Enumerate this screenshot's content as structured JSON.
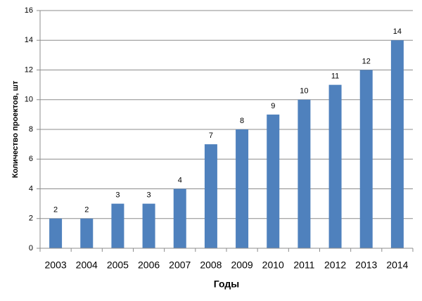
{
  "chart_data": {
    "type": "bar",
    "x_label": "Годы",
    "y_label": "Количество проектов, шт",
    "categories": [
      "2003",
      "2004",
      "2005",
      "2006",
      "2007",
      "2008",
      "2009",
      "2010",
      "2011",
      "2012",
      "2013",
      "2014"
    ],
    "values": [
      2,
      2,
      3,
      3,
      4,
      7,
      8,
      9,
      10,
      11,
      12,
      14
    ],
    "color": "#4f81bd",
    "ylim": [
      0,
      16
    ],
    "yticks": [
      0,
      2,
      4,
      6,
      8,
      10,
      12,
      14,
      16
    ],
    "grid": true
  }
}
